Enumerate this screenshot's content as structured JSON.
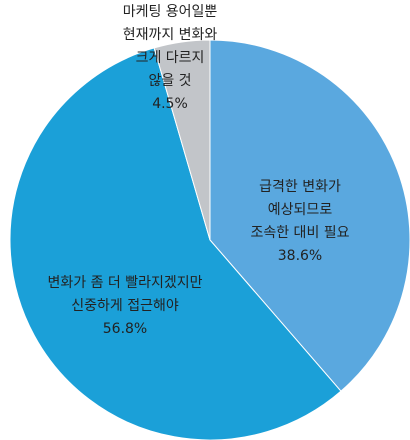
{
  "chart_data": {
    "type": "pie",
    "categories": [
      [
        "급격한 변화가",
        "예상되므로",
        "조속한 대비 필요"
      ],
      [
        "변화가 좀 더 빨라지겠지만",
        "신중하게 접근해야"
      ],
      [
        "마케팅 용어일뿐",
        "현재까지 변화와",
        "크게 다르지",
        "않을 것"
      ]
    ],
    "values": [
      38.6,
      56.8,
      4.5
    ],
    "value_labels": [
      "38.6%",
      "56.8%",
      "4.5%"
    ],
    "colors": [
      "#5aa8df",
      "#1ba0d8",
      "#c2c5c9"
    ]
  }
}
